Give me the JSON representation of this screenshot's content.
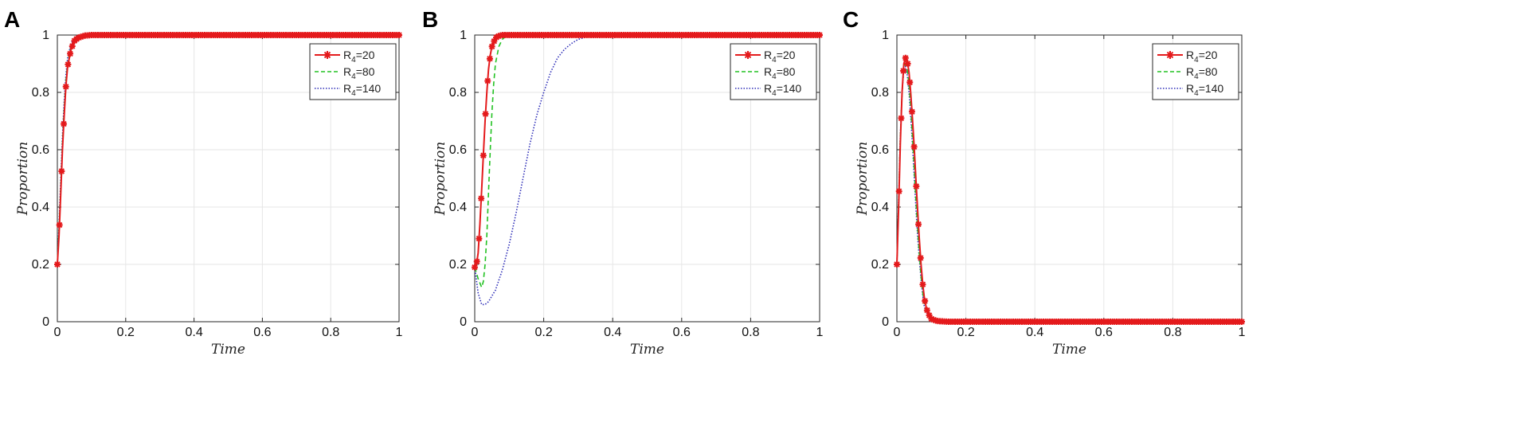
{
  "colors": {
    "series_20": "#e41a1c",
    "series_80": "#22c222",
    "series_140": "#2f2fb8",
    "grid": "#e6e6e6",
    "axis": "#262626"
  },
  "chart_data": [
    {
      "panel": "A",
      "type": "line",
      "xlabel": "Time",
      "ylabel": "Proportion",
      "xlim": [
        0,
        1
      ],
      "ylim": [
        0,
        1
      ],
      "xticks": [
        "0",
        "0.2",
        "0.4",
        "0.6",
        "0.8",
        "1"
      ],
      "yticks": [
        "0",
        "0.2",
        "0.4",
        "0.6",
        "0.8",
        "1"
      ],
      "grid": true,
      "legend_position": "top-right",
      "series": [
        {
          "name": "R4=20",
          "label_main": "R",
          "label_sub": "4",
          "label_value": "=20",
          "style": "solid-star",
          "color_key": "series_20",
          "x": [
            0,
            0.005,
            0.01,
            0.015,
            0.02,
            0.025,
            0.03,
            0.04,
            0.05,
            0.06,
            0.08,
            0.1,
            0.15,
            0.2,
            0.3,
            0.4,
            0.6,
            0.8,
            1
          ],
          "y": [
            0.2,
            0.3,
            0.45,
            0.6,
            0.72,
            0.82,
            0.89,
            0.95,
            0.98,
            0.99,
            0.998,
            1,
            1,
            1,
            1,
            1,
            1,
            1,
            1
          ]
        },
        {
          "name": "R4=80",
          "label_main": "R",
          "label_sub": "4",
          "label_value": "=80",
          "style": "dashed",
          "color_key": "series_80",
          "x": [
            0,
            0.005,
            0.01,
            0.015,
            0.02,
            0.025,
            0.03,
            0.04,
            0.05,
            0.06,
            0.08,
            0.1,
            0.15,
            0.2,
            0.3,
            0.4,
            0.6,
            0.8,
            1
          ],
          "y": [
            0.2,
            0.32,
            0.47,
            0.62,
            0.74,
            0.84,
            0.9,
            0.96,
            0.985,
            0.995,
            0.999,
            1,
            1,
            1,
            1,
            1,
            1,
            1,
            1
          ]
        },
        {
          "name": "R4=140",
          "label_main": "R",
          "label_sub": "4",
          "label_value": "=140",
          "style": "dotted",
          "color_key": "series_140",
          "x": [
            0,
            0.005,
            0.01,
            0.015,
            0.02,
            0.025,
            0.03,
            0.04,
            0.05,
            0.06,
            0.08,
            0.1,
            0.15,
            0.2,
            0.3,
            0.4,
            0.6,
            0.8,
            1
          ],
          "y": [
            0.2,
            0.34,
            0.5,
            0.65,
            0.77,
            0.86,
            0.92,
            0.97,
            0.99,
            0.997,
            1,
            1,
            1,
            1,
            1,
            1,
            1,
            1,
            1
          ]
        }
      ]
    },
    {
      "panel": "B",
      "type": "line",
      "xlabel": "Time",
      "ylabel": "Proportion",
      "xlim": [
        0,
        1
      ],
      "ylim": [
        0,
        1
      ],
      "xticks": [
        "0",
        "0.2",
        "0.4",
        "0.6",
        "0.8",
        "1"
      ],
      "yticks": [
        "0",
        "0.2",
        "0.4",
        "0.6",
        "0.8",
        "1"
      ],
      "grid": true,
      "legend_position": "top-right",
      "series": [
        {
          "name": "R4=20",
          "label_main": "R",
          "label_sub": "4",
          "label_value": "=20",
          "style": "solid-star",
          "color_key": "series_20",
          "x": [
            0,
            0.005,
            0.01,
            0.015,
            0.02,
            0.025,
            0.03,
            0.035,
            0.04,
            0.045,
            0.05,
            0.06,
            0.07,
            0.08,
            0.1,
            0.15,
            0.2,
            0.3,
            0.4,
            0.6,
            0.8,
            1
          ],
          "y": [
            0.19,
            0.2,
            0.24,
            0.34,
            0.46,
            0.58,
            0.7,
            0.8,
            0.88,
            0.93,
            0.96,
            0.99,
            0.997,
            1,
            1,
            1,
            1,
            1,
            1,
            1,
            1,
            1
          ]
        },
        {
          "name": "R4=80",
          "label_main": "R",
          "label_sub": "4",
          "label_value": "=80",
          "style": "dashed",
          "color_key": "series_80",
          "x": [
            0,
            0.01,
            0.02,
            0.025,
            0.03,
            0.035,
            0.04,
            0.045,
            0.05,
            0.055,
            0.06,
            0.07,
            0.08,
            0.09,
            0.1,
            0.12,
            0.15,
            0.2,
            0.3,
            0.4,
            0.6,
            0.8,
            1
          ],
          "y": [
            0.19,
            0.15,
            0.12,
            0.14,
            0.2,
            0.3,
            0.45,
            0.6,
            0.73,
            0.83,
            0.9,
            0.96,
            0.985,
            0.995,
            0.999,
            1,
            1,
            1,
            1,
            1,
            1,
            1,
            1
          ]
        },
        {
          "name": "R4=140",
          "label_main": "R",
          "label_sub": "4",
          "label_value": "=140",
          "style": "dotted",
          "color_key": "series_140",
          "x": [
            0,
            0.01,
            0.02,
            0.03,
            0.04,
            0.06,
            0.08,
            0.1,
            0.12,
            0.14,
            0.16,
            0.18,
            0.2,
            0.22,
            0.24,
            0.26,
            0.28,
            0.3,
            0.33,
            0.36,
            0.4,
            0.45,
            0.5,
            0.6,
            0.8,
            1
          ],
          "y": [
            0.19,
            0.1,
            0.06,
            0.06,
            0.07,
            0.11,
            0.18,
            0.27,
            0.38,
            0.5,
            0.62,
            0.72,
            0.8,
            0.87,
            0.92,
            0.95,
            0.97,
            0.985,
            0.995,
            0.999,
            1,
            1,
            1,
            1,
            1,
            1
          ]
        }
      ]
    },
    {
      "panel": "C",
      "type": "line",
      "xlabel": "Time",
      "ylabel": "Proportion",
      "xlim": [
        0,
        1
      ],
      "ylim": [
        0,
        1
      ],
      "xticks": [
        "0",
        "0.2",
        "0.4",
        "0.6",
        "0.8",
        "1"
      ],
      "yticks": [
        "0",
        "0.2",
        "0.4",
        "0.6",
        "0.8",
        "1"
      ],
      "grid": true,
      "legend_position": "top-right",
      "series": [
        {
          "name": "R4=20",
          "label_main": "R",
          "label_sub": "4",
          "label_value": "=20",
          "style": "solid-star",
          "color_key": "series_20",
          "x": [
            0,
            0.005,
            0.01,
            0.015,
            0.02,
            0.025,
            0.03,
            0.035,
            0.04,
            0.045,
            0.05,
            0.055,
            0.06,
            0.065,
            0.07,
            0.075,
            0.08,
            0.085,
            0.09,
            0.1,
            0.11,
            0.12,
            0.15,
            0.2,
            0.3,
            0.4,
            0.6,
            0.8,
            1
          ],
          "y": [
            0.2,
            0.4,
            0.62,
            0.8,
            0.9,
            0.92,
            0.91,
            0.87,
            0.8,
            0.71,
            0.61,
            0.5,
            0.39,
            0.29,
            0.2,
            0.13,
            0.08,
            0.05,
            0.03,
            0.01,
            0.005,
            0.002,
            0,
            0,
            0,
            0,
            0,
            0,
            0
          ]
        },
        {
          "name": "R4=80",
          "label_main": "R",
          "label_sub": "4",
          "label_value": "=80",
          "style": "dashed",
          "color_key": "series_80",
          "x": [
            0,
            0.005,
            0.01,
            0.015,
            0.02,
            0.025,
            0.03,
            0.035,
            0.04,
            0.045,
            0.05,
            0.055,
            0.06,
            0.065,
            0.07,
            0.075,
            0.08,
            0.09,
            0.1,
            0.12,
            0.15,
            0.2,
            0.4,
            0.6,
            0.8,
            1
          ],
          "y": [
            0.2,
            0.42,
            0.64,
            0.8,
            0.89,
            0.9,
            0.88,
            0.83,
            0.75,
            0.65,
            0.54,
            0.43,
            0.33,
            0.24,
            0.16,
            0.1,
            0.06,
            0.02,
            0.008,
            0.002,
            0,
            0,
            0,
            0,
            0,
            0
          ]
        },
        {
          "name": "R4=140",
          "label_main": "R",
          "label_sub": "4",
          "label_value": "=140",
          "style": "dotted",
          "color_key": "series_140",
          "x": [
            0,
            0.005,
            0.01,
            0.015,
            0.02,
            0.025,
            0.03,
            0.035,
            0.04,
            0.045,
            0.05,
            0.055,
            0.06,
            0.065,
            0.07,
            0.075,
            0.08,
            0.09,
            0.1,
            0.12,
            0.15,
            0.2,
            0.4,
            0.6,
            0.8,
            1
          ],
          "y": [
            0.2,
            0.43,
            0.65,
            0.8,
            0.88,
            0.89,
            0.86,
            0.8,
            0.72,
            0.62,
            0.51,
            0.4,
            0.3,
            0.22,
            0.15,
            0.09,
            0.05,
            0.02,
            0.007,
            0.002,
            0,
            0,
            0,
            0,
            0,
            0
          ]
        }
      ]
    }
  ]
}
